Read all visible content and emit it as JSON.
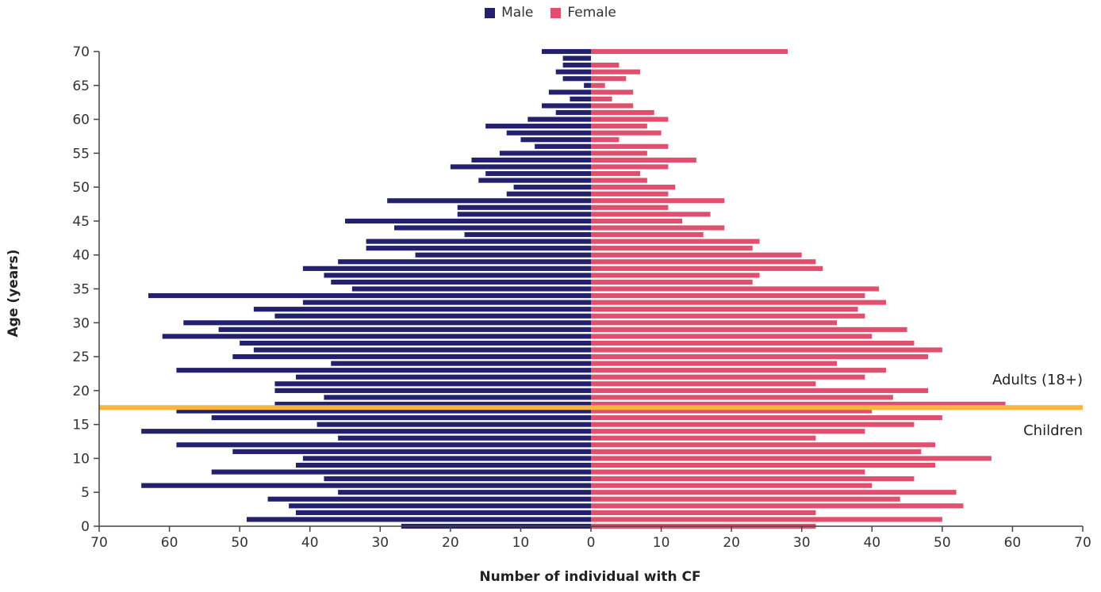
{
  "legend": {
    "male_label": "Male",
    "female_label": "Female"
  },
  "chart_data": {
    "type": "bar",
    "orientation": "horizontal-population-pyramid",
    "ylabel": "Age (years)",
    "xlabel": "Number of individual with CF",
    "ylim": [
      0,
      70
    ],
    "xlim": [
      -70,
      70
    ],
    "yticks": [
      0,
      5,
      10,
      15,
      20,
      25,
      30,
      35,
      40,
      45,
      50,
      55,
      60,
      65,
      70
    ],
    "xticks": [
      -70,
      -60,
      -50,
      -40,
      -30,
      -20,
      -10,
      0,
      10,
      20,
      30,
      40,
      50,
      60,
      70
    ],
    "xtick_labels": [
      "70",
      "60",
      "50",
      "40",
      "30",
      "20",
      "10",
      "0",
      "10",
      "20",
      "30",
      "40",
      "50",
      "60",
      "70"
    ],
    "ages": [
      0,
      1,
      2,
      3,
      4,
      5,
      6,
      7,
      8,
      9,
      10,
      11,
      12,
      13,
      14,
      15,
      16,
      17,
      18,
      19,
      20,
      21,
      22,
      23,
      24,
      25,
      26,
      27,
      28,
      29,
      30,
      31,
      32,
      33,
      34,
      35,
      36,
      37,
      38,
      39,
      40,
      41,
      42,
      43,
      44,
      45,
      46,
      47,
      48,
      49,
      50,
      51,
      52,
      53,
      54,
      55,
      56,
      57,
      58,
      59,
      60,
      61,
      62,
      63,
      64,
      65,
      66,
      67,
      68,
      69,
      70
    ],
    "series": [
      {
        "name": "Male",
        "color": "#23216e",
        "values": [
          27,
          49,
          42,
          43,
          46,
          36,
          64,
          38,
          54,
          42,
          41,
          51,
          59,
          36,
          64,
          39,
          54,
          59,
          45,
          38,
          45,
          45,
          42,
          59,
          37,
          51,
          48,
          50,
          61,
          53,
          58,
          45,
          48,
          41,
          63,
          34,
          37,
          38,
          41,
          36,
          25,
          32,
          32,
          18,
          28,
          35,
          19,
          19,
          29,
          12,
          11,
          16,
          15,
          20,
          17,
          13,
          8,
          10,
          12,
          15,
          9,
          5,
          7,
          3,
          6,
          1,
          4,
          5,
          4,
          4,
          7
        ]
      },
      {
        "name": "Female",
        "color": "#e0506e",
        "values": [
          32,
          50,
          32,
          53,
          44,
          52,
          40,
          46,
          39,
          49,
          57,
          47,
          49,
          32,
          39,
          46,
          50,
          40,
          59,
          43,
          48,
          32,
          39,
          42,
          35,
          48,
          50,
          46,
          40,
          45,
          35,
          39,
          38,
          42,
          39,
          41,
          23,
          24,
          33,
          32,
          30,
          23,
          24,
          16,
          19,
          13,
          17,
          11,
          19,
          11,
          12,
          8,
          7,
          11,
          15,
          8,
          11,
          4,
          10,
          8,
          11,
          9,
          6,
          3,
          6,
          2,
          5,
          7,
          4,
          0,
          28
        ]
      }
    ],
    "reference_line": {
      "age": 17.5,
      "color": "#f5b640"
    },
    "annotations": [
      "Adults (18+)",
      "Children"
    ],
    "grid": false,
    "legend_position": "top-center"
  }
}
